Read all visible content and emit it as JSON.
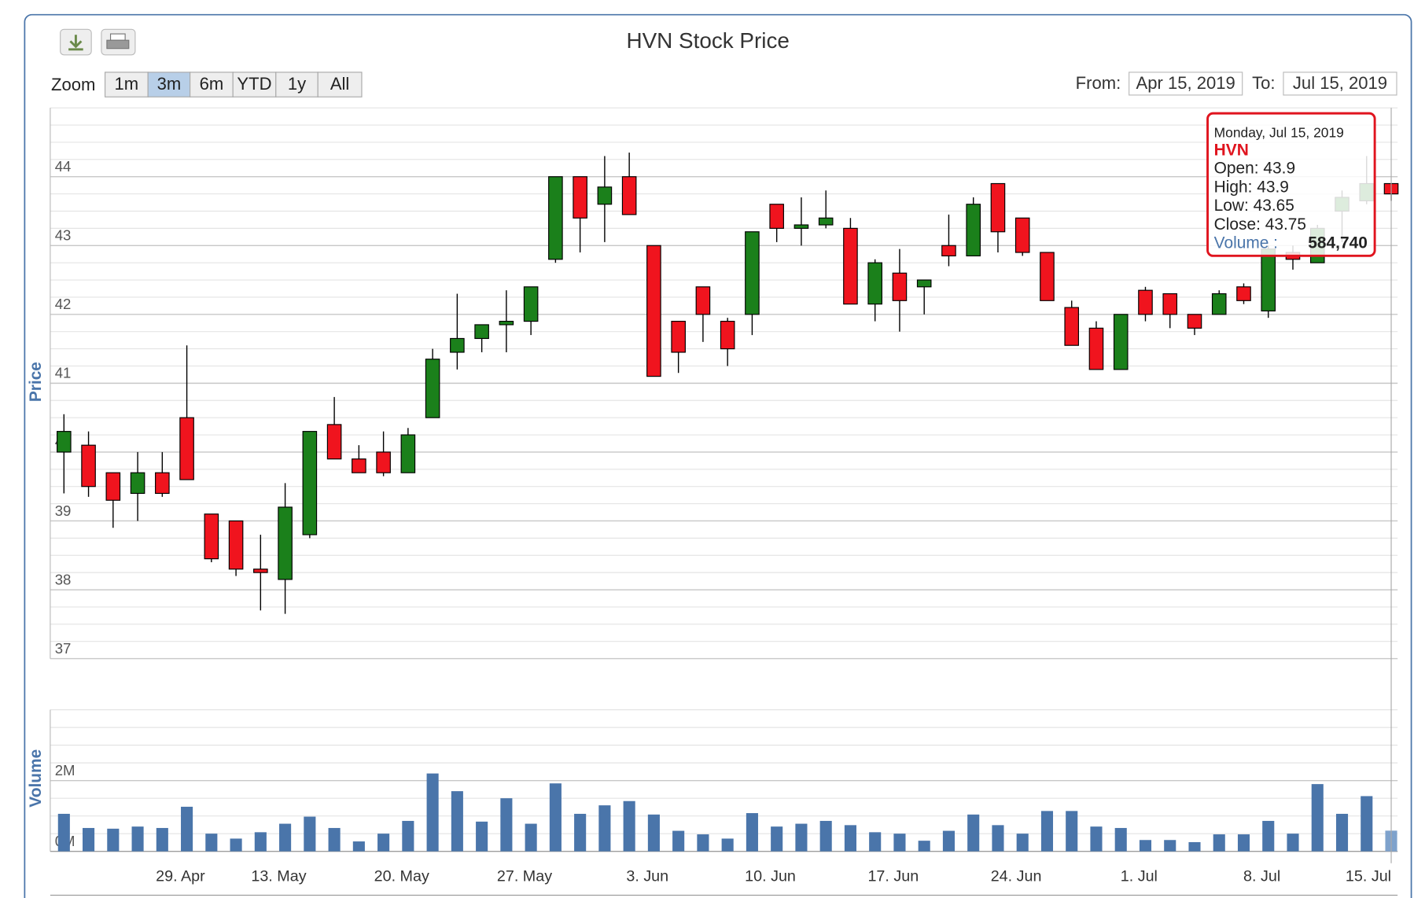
{
  "ui": {
    "zoom_label": "Zoom",
    "zoom_buttons": [
      "1m",
      "3m",
      "6m",
      "YTD",
      "1y",
      "All"
    ],
    "zoom_selected": 1,
    "from_label": "From:",
    "from": "Apr 15, 2019",
    "to_label": "To:",
    "to": "Jul 15, 2019"
  },
  "chart_data": {
    "type": "candlestick",
    "title": "HVN Stock Price",
    "name": "HVN",
    "y_label": "Price",
    "categories": [
      null,
      null,
      null,
      null,
      null,
      "29. Apr",
      null,
      null,
      null,
      "13. May",
      null,
      null,
      null,
      null,
      "20. May",
      null,
      null,
      null,
      null,
      "27. May",
      null,
      null,
      null,
      null,
      "3. Jun",
      null,
      null,
      null,
      null,
      "10. Jun",
      null,
      null,
      null,
      null,
      "17. Jun",
      null,
      null,
      null,
      null,
      "24. Jun",
      null,
      null,
      null,
      null,
      "1. Jul",
      null,
      null,
      null,
      null,
      "8. Jul",
      null,
      null,
      null,
      null,
      "15. Jul"
    ],
    "open": [
      40.0,
      40.1,
      39.7,
      39.4,
      39.7,
      40.5,
      39.1,
      39.0,
      38.3,
      38.15,
      38.8,
      40.4,
      39.9,
      40.0,
      39.7,
      40.5,
      41.45,
      41.65,
      41.85,
      41.9,
      42.8,
      44.0,
      43.6,
      44.0,
      43.0,
      41.9,
      42.4,
      41.9,
      42.0,
      43.6,
      43.25,
      43.3,
      43.25,
      42.15,
      42.6,
      42.4,
      43.0,
      42.85,
      43.9,
      43.4,
      42.9,
      42.1,
      41.8,
      41.2,
      42.35,
      42.3,
      42.0,
      42.0,
      42.4,
      42.05,
      42.9,
      42.75,
      43.5,
      43.65,
      43.9
    ],
    "high": [
      40.55,
      40.3,
      39.7,
      40.0,
      40.0,
      41.55,
      39.1,
      39.0,
      38.8,
      39.55,
      40.3,
      40.8,
      40.1,
      40.3,
      40.35,
      41.5,
      42.3,
      41.85,
      42.35,
      42.4,
      44.0,
      44.0,
      44.3,
      44.35,
      43.0,
      41.9,
      42.4,
      41.95,
      43.2,
      43.6,
      43.7,
      43.8,
      43.4,
      42.8,
      42.95,
      42.5,
      43.45,
      43.7,
      43.9,
      43.4,
      42.9,
      42.2,
      41.9,
      42.0,
      42.4,
      42.3,
      42.0,
      42.35,
      42.45,
      43.0,
      43.0,
      43.3,
      43.8,
      44.3,
      43.9
    ],
    "low": [
      39.4,
      39.35,
      38.9,
      39.0,
      39.35,
      39.6,
      38.4,
      38.2,
      37.7,
      37.65,
      38.75,
      39.9,
      39.7,
      39.65,
      39.7,
      40.5,
      41.2,
      41.45,
      41.45,
      41.7,
      42.75,
      42.9,
      43.05,
      43.45,
      41.1,
      41.15,
      41.6,
      41.25,
      41.7,
      43.05,
      43.0,
      43.25,
      42.15,
      41.9,
      41.75,
      42.0,
      42.7,
      42.85,
      42.9,
      42.85,
      42.2,
      41.55,
      41.2,
      41.2,
      41.9,
      41.8,
      41.7,
      42.0,
      42.15,
      41.95,
      42.65,
      42.75,
      43.05,
      43.6,
      43.65
    ],
    "close": [
      40.3,
      39.5,
      39.3,
      39.7,
      39.4,
      39.6,
      38.45,
      38.3,
      38.25,
      39.2,
      40.3,
      39.9,
      39.7,
      39.7,
      40.25,
      41.35,
      41.65,
      41.85,
      41.9,
      42.4,
      44.0,
      43.4,
      43.85,
      43.45,
      41.1,
      41.45,
      42.0,
      41.5,
      43.2,
      43.25,
      43.3,
      43.4,
      42.15,
      42.75,
      42.2,
      42.5,
      42.85,
      43.6,
      43.2,
      42.9,
      42.2,
      41.55,
      41.2,
      42.0,
      42.0,
      42.0,
      41.8,
      42.3,
      42.2,
      42.95,
      42.8,
      43.25,
      43.7,
      43.9,
      43.75
    ],
    "up_color": "#1b801b",
    "down_color": "#f0141e",
    "ylim": [
      37,
      45
    ],
    "yticks": [
      37,
      38,
      39,
      40,
      41,
      42,
      43,
      44
    ],
    "grid": true,
    "minor_grid": true,
    "volume": {
      "y_label": "Volume",
      "color": "#4a75aa",
      "values": [
        1060000,
        660000,
        640000,
        700000,
        660000,
        1260000,
        500000,
        360000,
        540000,
        780000,
        980000,
        660000,
        280000,
        500000,
        860000,
        2200000,
        1700000,
        840000,
        1500000,
        780000,
        1920000,
        1060000,
        1300000,
        1420000,
        1040000,
        580000,
        480000,
        360000,
        1080000,
        700000,
        780000,
        860000,
        740000,
        540000,
        500000,
        300000,
        580000,
        1040000,
        740000,
        500000,
        1140000,
        1140000,
        700000,
        660000,
        320000,
        320000,
        260000,
        480000,
        480000,
        860000,
        500000,
        1900000,
        1060000,
        1560000,
        584740
      ],
      "ylim": [
        0,
        4000000
      ],
      "yticks": [
        {
          "value": 0,
          "label": "0M"
        },
        {
          "value": 2000000,
          "label": "2M"
        }
      ]
    },
    "tooltip": {
      "date": "Monday, Jul 15, 2019",
      "labels": [
        "Open:",
        "High:",
        "Low:",
        "Close:"
      ],
      "volume_label": "Volume :",
      "volume_value": "584,740"
    }
  }
}
